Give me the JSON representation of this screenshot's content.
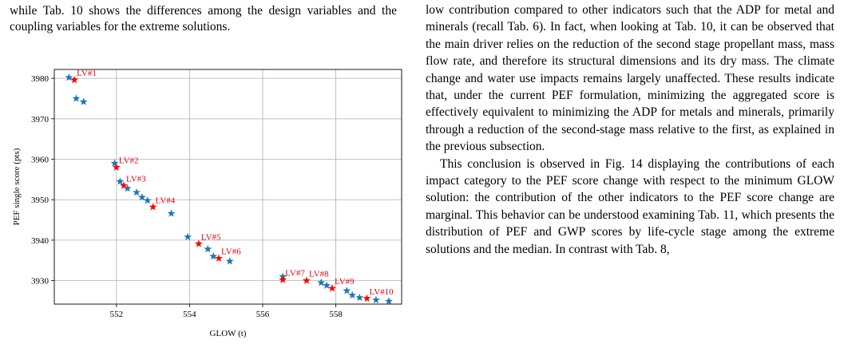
{
  "left_intro": "while Tab. 10 shows the differences among the design variables and the coupling variables for the extreme solutions.",
  "right_paragraphs": [
    "low contribution compared to other indicators such that the ADP for metal and minerals (recall Tab. 6). In fact, when looking at Tab. 10, it can be observed that the main driver relies on the reduction of the second stage propellant mass, mass flow rate, and therefore its structural dimensions and its dry mass. The climate change and water use impacts remains largely unaffected. These results indicate that, under the current PEF formulation, minimizing the aggregated score is effectively equivalent to minimizing the ADP for metals and minerals, primarily through a reduction of the second-stage mass relative to the first, as explained in the previous subsection.",
    "This conclusion is observed in Fig. 14 displaying the contributions of each impact category to the PEF score change with respect to the minimum GLOW solution: the contribution of the other indicators to the PEF score change are marginal. This behavior can be understood examining Tab. 11, which presents the distribution of PEF and GWP scores by life-cycle stage among the extreme solutions and the median. In contrast with Tab. 8,"
  ],
  "chart_data": {
    "type": "scatter",
    "xlabel": "GLOW (t)",
    "ylabel": "PEF single score (pts)",
    "xlim": [
      550.3,
      559.8
    ],
    "ylim": [
      3924.2,
      3982.2
    ],
    "xticks": [
      552,
      554,
      556,
      558
    ],
    "yticks": [
      3930,
      3940,
      3950,
      3960,
      3970,
      3980
    ],
    "grid": true,
    "colors": {
      "pareto": "#1f77b4",
      "selected": "#ff0000",
      "label": "#e8000b"
    },
    "series": [
      {
        "marker": "star",
        "points": [
          {
            "x": 550.7,
            "y": 3980.2
          },
          {
            "x": 550.9,
            "y": 3975.0
          },
          {
            "x": 551.1,
            "y": 3974.2
          },
          {
            "x": 551.95,
            "y": 3959.0
          },
          {
            "x": 552.1,
            "y": 3954.5
          },
          {
            "x": 552.3,
            "y": 3952.8
          },
          {
            "x": 552.55,
            "y": 3951.8
          },
          {
            "x": 552.7,
            "y": 3950.6
          },
          {
            "x": 552.85,
            "y": 3949.8
          },
          {
            "x": 553.5,
            "y": 3946.6
          },
          {
            "x": 553.95,
            "y": 3940.8
          },
          {
            "x": 554.5,
            "y": 3937.8
          },
          {
            "x": 554.65,
            "y": 3936.0
          },
          {
            "x": 555.1,
            "y": 3934.8
          },
          {
            "x": 556.55,
            "y": 3931.0
          },
          {
            "x": 557.6,
            "y": 3929.5
          },
          {
            "x": 557.75,
            "y": 3928.8
          },
          {
            "x": 558.3,
            "y": 3927.5
          },
          {
            "x": 558.45,
            "y": 3926.4
          },
          {
            "x": 558.65,
            "y": 3925.8
          },
          {
            "x": 559.1,
            "y": 3925.2
          },
          {
            "x": 559.45,
            "y": 3924.9
          }
        ]
      },
      {
        "marker": "star",
        "points": [
          {
            "label": "LV#1",
            "x": 550.85,
            "y": 3979.6
          },
          {
            "label": "LV#2",
            "x": 552.0,
            "y": 3958.0
          },
          {
            "label": "LV#3",
            "x": 552.2,
            "y": 3953.5
          },
          {
            "label": "LV#4",
            "x": 553.0,
            "y": 3948.2
          },
          {
            "label": "LV#5",
            "x": 554.25,
            "y": 3939.1
          },
          {
            "label": "LV#6",
            "x": 554.8,
            "y": 3935.5
          },
          {
            "label": "LV#7",
            "x": 556.55,
            "y": 3930.2
          },
          {
            "label": "LV#8",
            "x": 557.2,
            "y": 3930.0
          },
          {
            "label": "LV#9",
            "x": 557.9,
            "y": 3928.1
          },
          {
            "label": "LV#10",
            "x": 558.85,
            "y": 3925.6
          }
        ]
      }
    ]
  }
}
